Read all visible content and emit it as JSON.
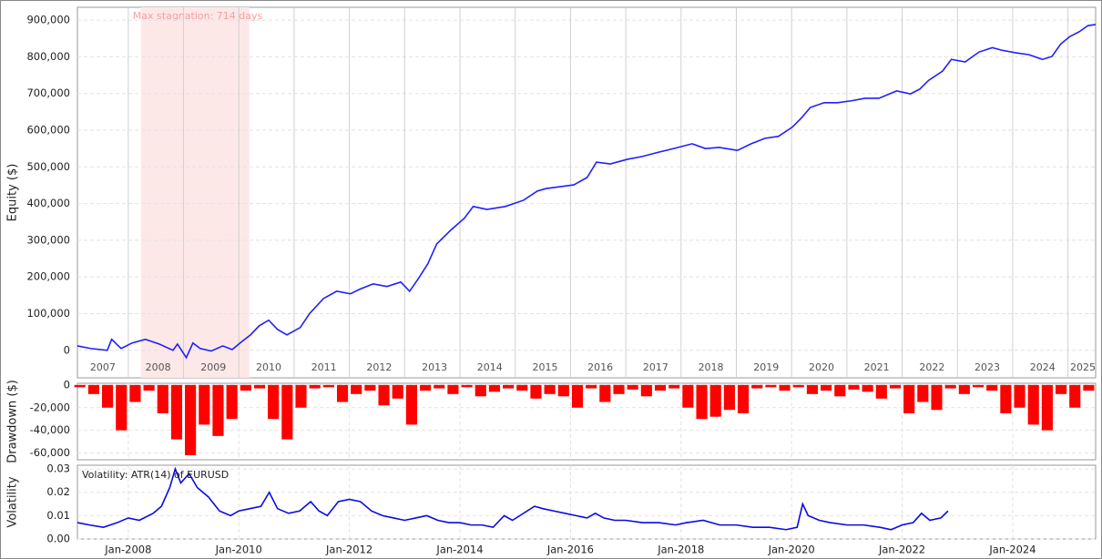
{
  "chart_data": [
    {
      "type": "line",
      "y_label": "Equity ($)",
      "color": "#1f1fff",
      "grid": true,
      "xlim": [
        2007.08,
        2025.5
      ],
      "ylim": [
        -75000,
        935000
      ],
      "xticks": [
        2008,
        2009,
        2010,
        2011,
        2012,
        2013,
        2014,
        2015,
        2016,
        2017,
        2018,
        2019,
        2020,
        2021,
        2022,
        2023,
        2024,
        2025
      ],
      "yticks": [
        0,
        {
          "value": 100000,
          "label": "100,000"
        },
        {
          "value": 200000,
          "label": "200,000"
        },
        {
          "value": 300000,
          "label": "300,000"
        },
        {
          "value": 400000,
          "label": "400,000"
        },
        {
          "value": 500000,
          "label": "500,000"
        },
        {
          "value": 600000,
          "label": "600,000"
        },
        {
          "value": 700000,
          "label": "700,000"
        },
        {
          "value": 800000,
          "label": "800,000"
        },
        {
          "value": 900000,
          "label": "900,000"
        }
      ],
      "year_labels": [
        {
          "value": 2007.54,
          "label": "2007"
        },
        {
          "value": 2008.54,
          "label": "2008"
        },
        {
          "value": 2009.54,
          "label": "2009"
        },
        {
          "value": 2010.54,
          "label": "2010"
        },
        {
          "value": 2011.54,
          "label": "2011"
        },
        {
          "value": 2012.54,
          "label": "2012"
        },
        {
          "value": 2013.54,
          "label": "2013"
        },
        {
          "value": 2014.54,
          "label": "2014"
        },
        {
          "value": 2015.54,
          "label": "2015"
        },
        {
          "value": 2016.54,
          "label": "2016"
        },
        {
          "value": 2017.54,
          "label": "2017"
        },
        {
          "value": 2018.54,
          "label": "2018"
        },
        {
          "value": 2019.54,
          "label": "2019"
        },
        {
          "value": 2020.54,
          "label": "2020"
        },
        {
          "value": 2021.54,
          "label": "2021"
        },
        {
          "value": 2022.54,
          "label": "2022"
        },
        {
          "value": 2023.54,
          "label": "2023"
        },
        {
          "value": 2024.54,
          "label": "2024"
        },
        {
          "value": 2025.27,
          "label": "2025"
        }
      ],
      "stagnation": {
        "start": 2008.23,
        "end": 2010.19,
        "label": "Max stagnation: 714 days",
        "color": "#fde8e8"
      },
      "x": [
        2007.08,
        2007.32,
        2007.62,
        2007.7,
        2007.87,
        2008.07,
        2008.31,
        2008.56,
        2008.81,
        2008.89,
        2009.05,
        2009.17,
        2009.3,
        2009.5,
        2009.71,
        2009.88,
        2010.04,
        2010.21,
        2010.37,
        2010.54,
        2010.7,
        2010.87,
        2011.11,
        2011.28,
        2011.53,
        2011.77,
        2012.02,
        2012.18,
        2012.43,
        2012.68,
        2012.93,
        2013.09,
        2013.26,
        2013.42,
        2013.58,
        2013.83,
        2014.08,
        2014.24,
        2014.49,
        2014.82,
        2015.15,
        2015.4,
        2015.56,
        2015.81,
        2016.06,
        2016.3,
        2016.47,
        2016.72,
        2017.04,
        2017.29,
        2017.54,
        2017.87,
        2018.2,
        2018.44,
        2018.69,
        2019.02,
        2019.27,
        2019.52,
        2019.76,
        2020.01,
        2020.17,
        2020.34,
        2020.59,
        2020.83,
        2021.08,
        2021.33,
        2021.58,
        2021.9,
        2022.15,
        2022.32,
        2022.48,
        2022.73,
        2022.89,
        2023.14,
        2023.39,
        2023.63,
        2023.8,
        2024.05,
        2024.29,
        2024.54,
        2024.71,
        2024.87,
        2025.03,
        2025.2,
        2025.36,
        2025.5
      ],
      "values": [
        12000,
        5000,
        0,
        30000,
        5000,
        20000,
        30000,
        17000,
        0,
        17000,
        -20000,
        20000,
        5000,
        -2000,
        12000,
        2000,
        22000,
        42000,
        67000,
        82000,
        57000,
        42000,
        62000,
        100000,
        141000,
        161000,
        154000,
        166000,
        181000,
        174000,
        186000,
        161000,
        198000,
        236000,
        290000,
        327000,
        360000,
        392000,
        384000,
        392000,
        409000,
        434000,
        441000,
        446000,
        451000,
        471000,
        513000,
        508000,
        521000,
        528000,
        538000,
        550000,
        563000,
        550000,
        553000,
        545000,
        563000,
        578000,
        583000,
        608000,
        632000,
        662000,
        675000,
        675000,
        680000,
        687000,
        687000,
        707000,
        699000,
        712000,
        736000,
        761000,
        793000,
        786000,
        813000,
        825000,
        818000,
        811000,
        806000,
        793000,
        801000,
        835000,
        855000,
        868000,
        885000,
        888000
      ]
    },
    {
      "type": "bar",
      "y_label": "Drawdown ($)",
      "color": "#ff0000",
      "grid": true,
      "xlim": [
        2007.08,
        2025.5
      ],
      "ylim": [
        -66000,
        1500
      ],
      "xticks": [
        2008,
        2010,
        2012,
        2014,
        2016,
        2018,
        2020,
        2022,
        2024
      ],
      "yticks": [
        0,
        {
          "value": -20000,
          "label": "-20,000"
        },
        {
          "value": -40000,
          "label": "-40,000"
        },
        {
          "value": -60000,
          "label": "-60,000"
        }
      ],
      "x": [
        2007.125,
        2007.375,
        2007.625,
        2007.875,
        2008.125,
        2008.375,
        2008.625,
        2008.875,
        2009.125,
        2009.375,
        2009.625,
        2009.875,
        2010.125,
        2010.375,
        2010.625,
        2010.875,
        2011.125,
        2011.375,
        2011.625,
        2011.875,
        2012.125,
        2012.375,
        2012.625,
        2012.875,
        2013.125,
        2013.375,
        2013.625,
        2013.875,
        2014.125,
        2014.375,
        2014.625,
        2014.875,
        2015.125,
        2015.375,
        2015.625,
        2015.875,
        2016.125,
        2016.375,
        2016.625,
        2016.875,
        2017.125,
        2017.375,
        2017.625,
        2017.875,
        2018.125,
        2018.375,
        2018.625,
        2018.875,
        2019.125,
        2019.375,
        2019.625,
        2019.875,
        2020.125,
        2020.375,
        2020.625,
        2020.875,
        2021.125,
        2021.375,
        2021.625,
        2021.875,
        2022.125,
        2022.375,
        2022.625,
        2022.875,
        2023.125,
        2023.375,
        2023.625,
        2023.875,
        2024.125,
        2024.375,
        2024.625,
        2024.875,
        2025.125,
        2025.375
      ],
      "values": [
        -2000,
        -8000,
        -20000,
        -40000,
        -15000,
        -5000,
        -25000,
        -48000,
        -62000,
        -35000,
        -45000,
        -30000,
        -5000,
        -3000,
        -30000,
        -48000,
        -20000,
        -3000,
        -2000,
        -15000,
        -8000,
        -5000,
        -18000,
        -12000,
        -35000,
        -5000,
        -3000,
        -8000,
        -2000,
        -10000,
        -6000,
        -3000,
        -5000,
        -12000,
        -8000,
        -10000,
        -20000,
        -3000,
        -15000,
        -8000,
        -4000,
        -10000,
        -5000,
        -3000,
        -20000,
        -30000,
        -28000,
        -22000,
        -25000,
        -3000,
        -2000,
        -5000,
        -2000,
        -8000,
        -5000,
        -10000,
        -4000,
        -6000,
        -12000,
        -3000,
        -25000,
        -15000,
        -22000,
        -3000,
        -8000,
        -2000,
        -5000,
        -25000,
        -20000,
        -35000,
        -40000,
        -8000,
        -20000,
        -5000
      ]
    },
    {
      "type": "line",
      "y_label": "Volatility",
      "note": "Volatility: ATR(14) of EURUSD",
      "color": "#0a0ae6",
      "grid": true,
      "xlim": [
        2007.08,
        2025.5
      ],
      "ylim": [
        0,
        0.0316
      ],
      "xticks": [
        {
          "value": 2008,
          "label": "Jan-2008"
        },
        {
          "value": 2010,
          "label": "Jan-2010"
        },
        {
          "value": 2012,
          "label": "Jan-2012"
        },
        {
          "value": 2014,
          "label": "Jan-2014"
        },
        {
          "value": 2016,
          "label": "Jan-2016"
        },
        {
          "value": 2018,
          "label": "Jan-2018"
        },
        {
          "value": 2020,
          "label": "Jan-2020"
        },
        {
          "value": 2022,
          "label": "Jan-2022"
        },
        {
          "value": 2024,
          "label": "Jan-2024"
        }
      ],
      "yticks": [
        {
          "value": 0,
          "label": "0.00"
        },
        0.01,
        0.02,
        0.03
      ],
      "x": [
        2007.08,
        2007.3,
        2007.55,
        2007.8,
        2008.0,
        2008.2,
        2008.45,
        2008.6,
        2008.75,
        2008.85,
        2008.95,
        2009.1,
        2009.25,
        2009.45,
        2009.65,
        2009.85,
        2010.0,
        2010.2,
        2010.4,
        2010.55,
        2010.7,
        2010.9,
        2011.1,
        2011.3,
        2011.45,
        2011.6,
        2011.8,
        2012.0,
        2012.2,
        2012.4,
        2012.6,
        2012.8,
        2013.0,
        2013.2,
        2013.4,
        2013.6,
        2013.8,
        2014.0,
        2014.2,
        2014.4,
        2014.6,
        2014.8,
        2014.95,
        2015.35,
        2015.5,
        2015.7,
        2015.9,
        2016.1,
        2016.3,
        2016.45,
        2016.6,
        2016.8,
        2017.0,
        2017.3,
        2017.6,
        2017.9,
        2018.1,
        2018.4,
        2018.7,
        2019.0,
        2019.3,
        2019.6,
        2019.9,
        2020.1,
        2020.2,
        2020.3,
        2020.5,
        2020.7,
        2021.0,
        2021.3,
        2021.6,
        2021.8,
        2022.0,
        2022.2,
        2022.35,
        2022.5,
        2022.7,
        2022.83
      ],
      "values": [
        0.007,
        0.006,
        0.005,
        0.007,
        0.009,
        0.008,
        0.011,
        0.014,
        0.022,
        0.03,
        0.024,
        0.028,
        0.022,
        0.018,
        0.012,
        0.01,
        0.012,
        0.013,
        0.014,
        0.02,
        0.013,
        0.011,
        0.012,
        0.016,
        0.012,
        0.01,
        0.016,
        0.017,
        0.016,
        0.012,
        0.01,
        0.009,
        0.008,
        0.009,
        0.01,
        0.008,
        0.007,
        0.007,
        0.006,
        0.006,
        0.005,
        0.01,
        0.008,
        0.014,
        0.013,
        0.012,
        0.011,
        0.01,
        0.009,
        0.011,
        0.009,
        0.008,
        0.008,
        0.007,
        0.007,
        0.006,
        0.007,
        0.008,
        0.006,
        0.006,
        0.005,
        0.005,
        0.004,
        0.005,
        0.015,
        0.01,
        0.008,
        0.007,
        0.006,
        0.006,
        0.005,
        0.004,
        0.006,
        0.007,
        0.011,
        0.008,
        0.009,
        0.012
      ]
    }
  ]
}
